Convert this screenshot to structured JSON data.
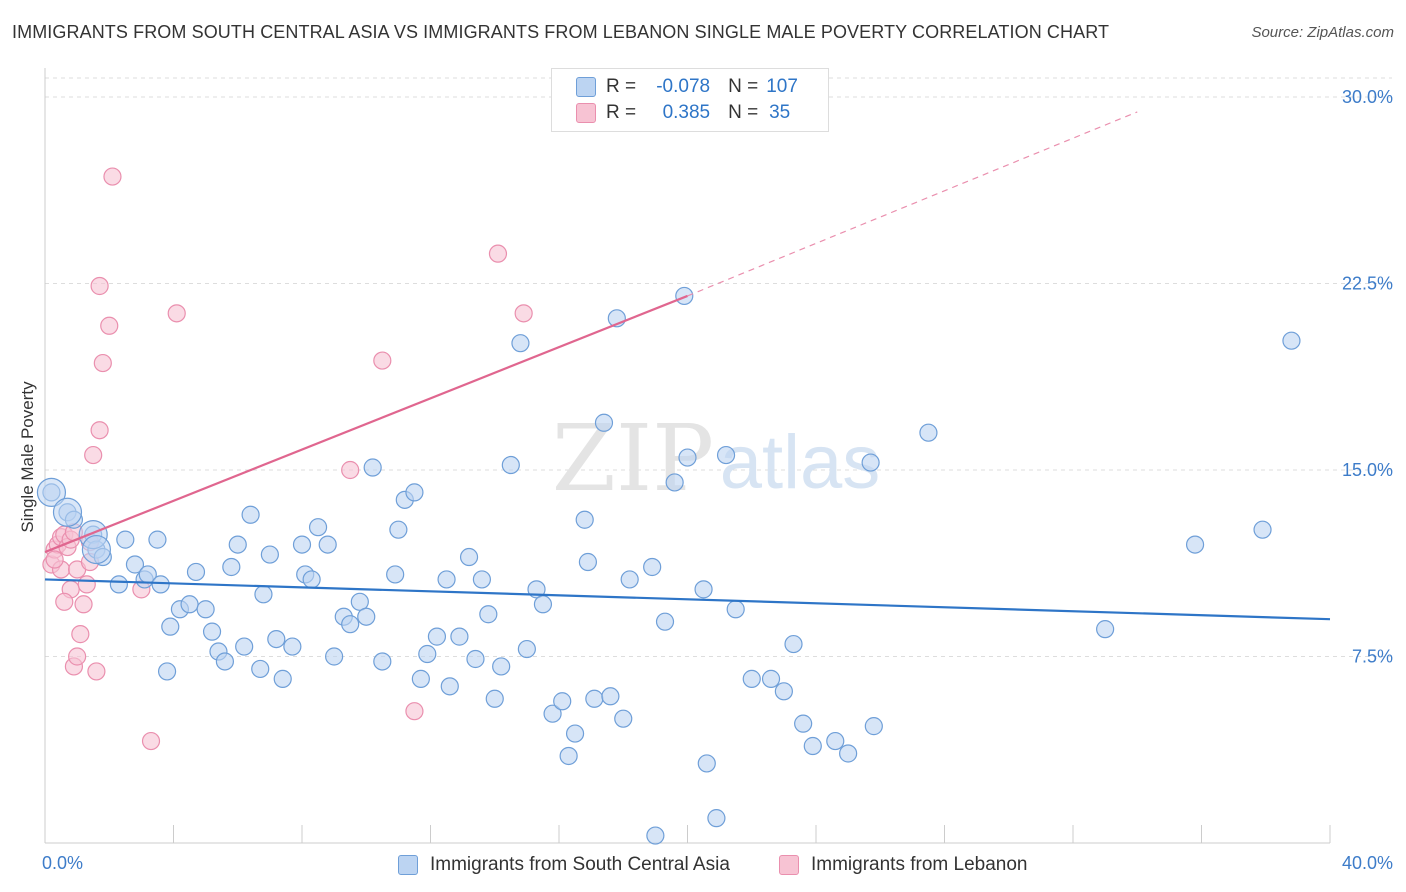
{
  "title": "IMMIGRANTS FROM SOUTH CENTRAL ASIA VS IMMIGRANTS FROM LEBANON SINGLE MALE POVERTY CORRELATION CHART",
  "source": "Source: ZipAtlas.com",
  "watermark": {
    "zip": "ZIP",
    "atlas": "atlas"
  },
  "legend": {
    "r_label": "R =",
    "n_label": "N =",
    "rows": [
      {
        "r": "-0.078",
        "n": "107"
      },
      {
        "r": "0.385",
        "n": "35"
      }
    ]
  },
  "colors": {
    "series_a_fill": "#bcd4f2",
    "series_a_stroke": "#6f9fd8",
    "series_a_line": "#2e75c7",
    "series_b_fill": "#f7c3d3",
    "series_b_stroke": "#ea8fae",
    "series_b_line": "#e0668f",
    "axis_text": "#3d7cc9",
    "grid": "#dddddd"
  },
  "chart_data": {
    "type": "scatter",
    "ylabel": "Single Male Poverty",
    "xlim": [
      0,
      40
    ],
    "ylim": [
      0,
      30.9
    ],
    "x_tick_labels": [
      {
        "value": 0,
        "label": "0.0%"
      },
      {
        "value": 40,
        "label": "40.0%"
      }
    ],
    "y_tick_labels": [
      {
        "value": 7.5,
        "label": "7.5%"
      },
      {
        "value": 15.0,
        "label": "15.0%"
      },
      {
        "value": 22.5,
        "label": "22.5%"
      },
      {
        "value": 30.0,
        "label": "30.0%"
      }
    ],
    "grid": true,
    "legend_position": "top-center",
    "series": [
      {
        "name": "Immigrants from South Central Asia",
        "color": "#6f9fd8",
        "r": -0.078,
        "n": 107,
        "trend": {
          "x": [
            0,
            40
          ],
          "y": [
            10.6,
            9.0
          ]
        },
        "points": [
          [
            0.2,
            14.1
          ],
          [
            0.7,
            13.3
          ],
          [
            0.9,
            13.0
          ],
          [
            1.5,
            12.4
          ],
          [
            1.6,
            11.8
          ],
          [
            1.8,
            11.5
          ],
          [
            2.3,
            10.4
          ],
          [
            2.5,
            12.2
          ],
          [
            2.8,
            11.2
          ],
          [
            3.1,
            10.6
          ],
          [
            3.2,
            10.8
          ],
          [
            3.5,
            12.2
          ],
          [
            3.6,
            10.4
          ],
          [
            3.8,
            6.9
          ],
          [
            3.9,
            8.7
          ],
          [
            4.2,
            9.4
          ],
          [
            4.5,
            9.6
          ],
          [
            4.7,
            10.9
          ],
          [
            5.0,
            9.4
          ],
          [
            5.2,
            8.5
          ],
          [
            5.4,
            7.7
          ],
          [
            5.6,
            7.3
          ],
          [
            5.8,
            11.1
          ],
          [
            6.0,
            12.0
          ],
          [
            6.2,
            7.9
          ],
          [
            6.4,
            13.2
          ],
          [
            6.7,
            7.0
          ],
          [
            6.8,
            10.0
          ],
          [
            7.0,
            11.6
          ],
          [
            7.2,
            8.2
          ],
          [
            7.4,
            6.6
          ],
          [
            7.7,
            7.9
          ],
          [
            8.0,
            12.0
          ],
          [
            8.1,
            10.8
          ],
          [
            8.3,
            10.6
          ],
          [
            8.5,
            12.7
          ],
          [
            8.8,
            12.0
          ],
          [
            9.0,
            7.5
          ],
          [
            9.3,
            9.1
          ],
          [
            9.5,
            8.8
          ],
          [
            9.8,
            9.7
          ],
          [
            10.0,
            9.1
          ],
          [
            10.2,
            15.1
          ],
          [
            10.5,
            7.3
          ],
          [
            10.9,
            10.8
          ],
          [
            11.0,
            12.6
          ],
          [
            11.2,
            13.8
          ],
          [
            11.5,
            14.1
          ],
          [
            11.7,
            6.6
          ],
          [
            11.9,
            7.6
          ],
          [
            12.2,
            8.3
          ],
          [
            12.5,
            10.6
          ],
          [
            12.6,
            6.3
          ],
          [
            12.9,
            8.3
          ],
          [
            13.2,
            11.5
          ],
          [
            13.4,
            7.4
          ],
          [
            13.6,
            10.6
          ],
          [
            13.8,
            9.2
          ],
          [
            14.0,
            5.8
          ],
          [
            14.2,
            7.1
          ],
          [
            14.5,
            15.2
          ],
          [
            14.8,
            20.1
          ],
          [
            15.0,
            7.8
          ],
          [
            15.3,
            10.2
          ],
          [
            15.5,
            9.6
          ],
          [
            15.8,
            5.2
          ],
          [
            16.1,
            5.7
          ],
          [
            16.3,
            3.5
          ],
          [
            16.5,
            4.4
          ],
          [
            16.8,
            13.0
          ],
          [
            16.9,
            11.3
          ],
          [
            17.1,
            5.8
          ],
          [
            17.4,
            16.9
          ],
          [
            17.6,
            5.9
          ],
          [
            17.8,
            21.1
          ],
          [
            18.0,
            5.0
          ],
          [
            18.2,
            10.6
          ],
          [
            18.9,
            11.1
          ],
          [
            19.0,
            0.3
          ],
          [
            19.3,
            8.9
          ],
          [
            19.6,
            14.5
          ],
          [
            19.9,
            22.0
          ],
          [
            20.0,
            15.5
          ],
          [
            20.5,
            10.2
          ],
          [
            20.6,
            3.2
          ],
          [
            20.9,
            1.0
          ],
          [
            21.2,
            15.6
          ],
          [
            21.5,
            9.4
          ],
          [
            22.0,
            6.6
          ],
          [
            22.6,
            6.6
          ],
          [
            23.0,
            6.1
          ],
          [
            23.3,
            8.0
          ],
          [
            23.6,
            4.8
          ],
          [
            23.9,
            3.9
          ],
          [
            24.6,
            4.1
          ],
          [
            25.0,
            3.6
          ],
          [
            25.7,
            15.3
          ],
          [
            25.8,
            4.7
          ],
          [
            27.5,
            16.5
          ],
          [
            33.0,
            8.6
          ],
          [
            35.8,
            12.0
          ],
          [
            37.9,
            12.6
          ],
          [
            38.8,
            20.2
          ]
        ],
        "big_points": [
          [
            0.2,
            14.1
          ],
          [
            0.7,
            13.3
          ],
          [
            1.5,
            12.4
          ],
          [
            1.6,
            11.8
          ]
        ]
      },
      {
        "name": "Immigrants from Lebanon",
        "color": "#ea8fae",
        "r": 0.385,
        "n": 35,
        "trend": {
          "x": [
            0,
            20.0
          ],
          "y": [
            11.7,
            22.0
          ]
        },
        "trend_extension": {
          "x": [
            20.0,
            34.0
          ],
          "y": [
            22.0,
            29.4
          ]
        },
        "points": [
          [
            0.2,
            11.2
          ],
          [
            0.3,
            11.8
          ],
          [
            0.4,
            12.0
          ],
          [
            0.5,
            11.0
          ],
          [
            0.5,
            12.3
          ],
          [
            0.6,
            12.4
          ],
          [
            0.7,
            11.9
          ],
          [
            0.8,
            12.2
          ],
          [
            0.8,
            10.2
          ],
          [
            0.9,
            12.5
          ],
          [
            0.6,
            9.7
          ],
          [
            0.9,
            7.1
          ],
          [
            1.0,
            11.0
          ],
          [
            1.0,
            7.5
          ],
          [
            1.1,
            8.4
          ],
          [
            1.2,
            9.6
          ],
          [
            1.3,
            10.4
          ],
          [
            1.4,
            11.3
          ],
          [
            1.4,
            12.1
          ],
          [
            1.5,
            15.6
          ],
          [
            1.6,
            6.9
          ],
          [
            1.7,
            16.6
          ],
          [
            1.8,
            19.3
          ],
          [
            1.7,
            22.4
          ],
          [
            2.0,
            20.8
          ],
          [
            2.1,
            26.8
          ],
          [
            3.0,
            10.2
          ],
          [
            3.3,
            4.1
          ],
          [
            4.1,
            21.3
          ],
          [
            9.5,
            15.0
          ],
          [
            10.5,
            19.4
          ],
          [
            11.5,
            5.3
          ],
          [
            14.1,
            23.7
          ],
          [
            14.9,
            21.3
          ],
          [
            0.3,
            11.4
          ]
        ]
      }
    ]
  },
  "bottom_legend": [
    {
      "label": "Immigrants from South Central Asia"
    },
    {
      "label": "Immigrants from Lebanon"
    }
  ]
}
